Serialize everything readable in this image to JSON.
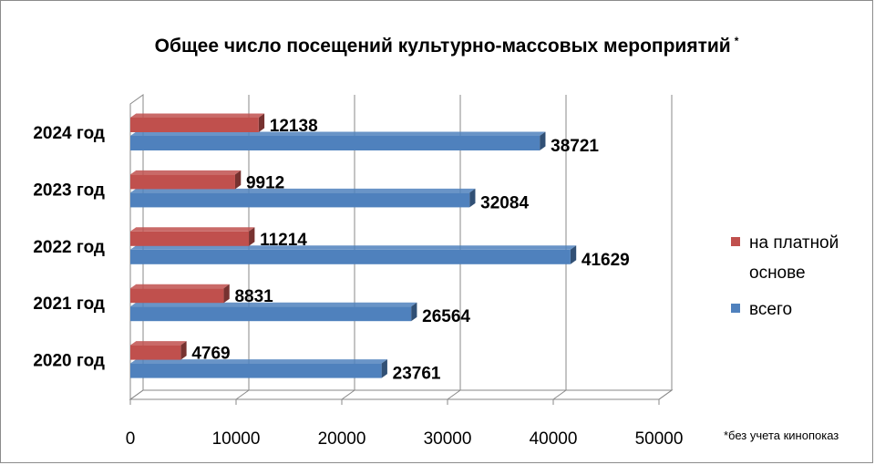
{
  "chart_data": {
    "type": "bar",
    "orientation": "horizontal",
    "title": "Общее число посещений культурно-массовых мероприятий",
    "title_mark": "*",
    "footnote": "*без учета кинопоказ",
    "categories": [
      "2020 год",
      "2021 год",
      "2022 год",
      "2023 год",
      "2024 год"
    ],
    "series": [
      {
        "name": "всего",
        "color": "#4F81BD",
        "values": [
          23761,
          26564,
          41629,
          32084,
          38721
        ]
      },
      {
        "name": "на платной основе",
        "color": "#C0504D",
        "values": [
          4769,
          8831,
          11214,
          9912,
          12138
        ]
      }
    ],
    "xlim": [
      0,
      50000
    ],
    "xticks": [
      0,
      10000,
      20000,
      30000,
      40000,
      50000
    ],
    "grid": true,
    "legend_position": "right",
    "legend": [
      {
        "line1": "на платной",
        "line2": "основе",
        "color": "#C0504D"
      },
      {
        "line1": "всего",
        "line2": "",
        "color": "#4F81BD"
      }
    ]
  }
}
